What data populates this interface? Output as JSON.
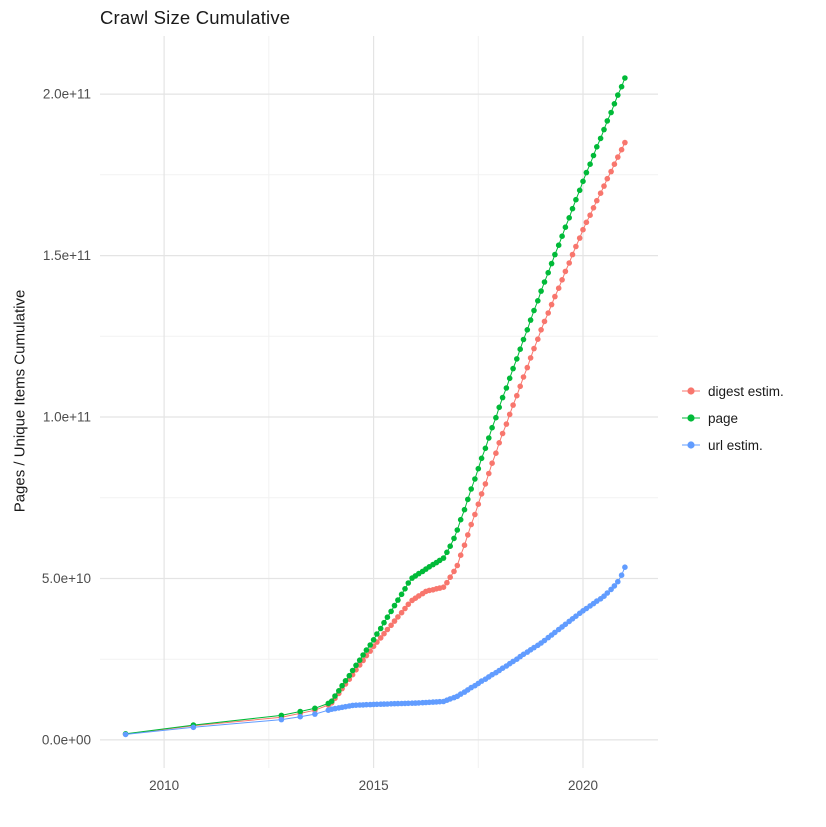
{
  "title": "Crawl Size Cumulative",
  "y_axis_label": "Pages / Unique Items Cumulative",
  "colors": {
    "digest_estim": "#F8766D",
    "page": "#00BA38",
    "url_estim": "#619CFF",
    "major_grid": "#e4e4e4",
    "minor_grid": "#f2f2f2",
    "tick_text": "#4d4d4d"
  },
  "chart_data": {
    "type": "scatter",
    "title": "Crawl Size Cumulative",
    "xlabel": "",
    "ylabel": "Pages / Unique Items Cumulative",
    "y_unit": "1e9",
    "legend_position": "right",
    "grid": "on",
    "x_domain": [
      2008.47,
      2021.79
    ],
    "y_domain": [
      -8.7,
      218
    ],
    "x_ticks": [
      {
        "value": 2010,
        "label": "2010"
      },
      {
        "value": 2015,
        "label": "2015"
      },
      {
        "value": 2020,
        "label": "2020"
      }
    ],
    "x_minor_ticks": [
      2012.5,
      2017.5
    ],
    "y_ticks": [
      {
        "value": 0,
        "label": "0.0e+00"
      },
      {
        "value": 50,
        "label": "5.0e+10"
      },
      {
        "value": 100,
        "label": "1.0e+11"
      },
      {
        "value": 150,
        "label": "1.5e+11"
      },
      {
        "value": 200,
        "label": "2.0e+11"
      }
    ],
    "y_minor_ticks": [
      25,
      75,
      125,
      175
    ],
    "series": [
      {
        "id": "digest-estim",
        "name": "digest estim.",
        "color": "#F8766D",
        "points": [
          [
            2009.08,
            1.8
          ],
          [
            2010.7,
            4.4
          ],
          [
            2012.8,
            7
          ],
          [
            2013.25,
            8.2
          ],
          [
            2013.6,
            9.2
          ],
          [
            2013.92,
            10.8
          ],
          [
            2014,
            11.5
          ],
          [
            2014.08,
            12.9
          ],
          [
            2014.17,
            14.4
          ],
          [
            2014.25,
            15.9
          ],
          [
            2014.33,
            17.3
          ],
          [
            2014.42,
            18.8
          ],
          [
            2014.5,
            20.2
          ],
          [
            2014.58,
            21.7
          ],
          [
            2014.67,
            23.2
          ],
          [
            2014.75,
            24.6
          ],
          [
            2014.83,
            26.1
          ],
          [
            2014.92,
            27.5
          ],
          [
            2015,
            29
          ],
          [
            2015.08,
            30.3
          ],
          [
            2015.17,
            31.6
          ],
          [
            2015.25,
            32.9
          ],
          [
            2015.33,
            34.2
          ],
          [
            2015.42,
            35.5
          ],
          [
            2015.5,
            36.8
          ],
          [
            2015.58,
            38.1
          ],
          [
            2015.67,
            39.4
          ],
          [
            2015.75,
            40.7
          ],
          [
            2015.83,
            42
          ],
          [
            2015.92,
            43.2
          ],
          [
            2016,
            43.9
          ],
          [
            2016.08,
            44.6
          ],
          [
            2016.17,
            45.3
          ],
          [
            2016.25,
            46
          ],
          [
            2016.33,
            46.3
          ],
          [
            2016.42,
            46.5
          ],
          [
            2016.5,
            46.8
          ],
          [
            2016.58,
            47
          ],
          [
            2016.67,
            47.3
          ],
          [
            2016.75,
            48.7
          ],
          [
            2016.83,
            50.4
          ],
          [
            2016.92,
            52.2
          ],
          [
            2017,
            54
          ],
          [
            2017.08,
            57.2
          ],
          [
            2017.17,
            60.3
          ],
          [
            2017.25,
            63.5
          ],
          [
            2017.33,
            66.7
          ],
          [
            2017.42,
            69.8
          ],
          [
            2017.5,
            73
          ],
          [
            2017.58,
            76.2
          ],
          [
            2017.67,
            79.3
          ],
          [
            2017.75,
            82.5
          ],
          [
            2017.83,
            85.7
          ],
          [
            2017.92,
            88.8
          ],
          [
            2018,
            92
          ],
          [
            2018.08,
            94.9
          ],
          [
            2018.17,
            97.8
          ],
          [
            2018.25,
            100.8
          ],
          [
            2018.33,
            103.7
          ],
          [
            2018.42,
            106.6
          ],
          [
            2018.5,
            109.5
          ],
          [
            2018.58,
            112.4
          ],
          [
            2018.67,
            115.3
          ],
          [
            2018.75,
            118.3
          ],
          [
            2018.83,
            121.2
          ],
          [
            2018.92,
            124.1
          ],
          [
            2019,
            127
          ],
          [
            2019.08,
            129.6
          ],
          [
            2019.17,
            132.2
          ],
          [
            2019.25,
            134.8
          ],
          [
            2019.33,
            137.3
          ],
          [
            2019.42,
            139.9
          ],
          [
            2019.5,
            142.5
          ],
          [
            2019.58,
            145.1
          ],
          [
            2019.67,
            147.7
          ],
          [
            2019.75,
            150.3
          ],
          [
            2019.83,
            152.8
          ],
          [
            2019.92,
            155.4
          ],
          [
            2020,
            158
          ],
          [
            2020.08,
            160.3
          ],
          [
            2020.17,
            162.5
          ],
          [
            2020.25,
            164.8
          ],
          [
            2020.33,
            167
          ],
          [
            2020.42,
            169.3
          ],
          [
            2020.5,
            171.5
          ],
          [
            2020.58,
            173.8
          ],
          [
            2020.67,
            176
          ],
          [
            2020.75,
            178.3
          ],
          [
            2020.83,
            180.5
          ],
          [
            2020.92,
            182.8
          ],
          [
            2021,
            185
          ]
        ]
      },
      {
        "id": "page",
        "name": "page",
        "color": "#00BA38",
        "points": [
          [
            2009.08,
            1.9
          ],
          [
            2010.7,
            4.6
          ],
          [
            2012.8,
            7.6
          ],
          [
            2013.25,
            8.8
          ],
          [
            2013.6,
            9.8
          ],
          [
            2013.92,
            11.3
          ],
          [
            2014,
            12
          ],
          [
            2014.08,
            13.6
          ],
          [
            2014.17,
            15.2
          ],
          [
            2014.25,
            16.8
          ],
          [
            2014.33,
            18.3
          ],
          [
            2014.42,
            19.9
          ],
          [
            2014.5,
            21.5
          ],
          [
            2014.58,
            23.1
          ],
          [
            2014.67,
            24.7
          ],
          [
            2014.75,
            26.3
          ],
          [
            2014.83,
            27.8
          ],
          [
            2014.92,
            29.4
          ],
          [
            2015,
            31
          ],
          [
            2015.08,
            32.8
          ],
          [
            2015.17,
            34.5
          ],
          [
            2015.25,
            36.3
          ],
          [
            2015.33,
            38
          ],
          [
            2015.42,
            39.8
          ],
          [
            2015.5,
            41.6
          ],
          [
            2015.58,
            43.3
          ],
          [
            2015.67,
            45.1
          ],
          [
            2015.75,
            46.8
          ],
          [
            2015.83,
            48.6
          ],
          [
            2015.92,
            50.1
          ],
          [
            2016,
            50.8
          ],
          [
            2016.08,
            51.5
          ],
          [
            2016.17,
            52.2
          ],
          [
            2016.25,
            52.9
          ],
          [
            2016.33,
            53.6
          ],
          [
            2016.42,
            54.3
          ],
          [
            2016.5,
            54.9
          ],
          [
            2016.58,
            55.6
          ],
          [
            2016.67,
            56.3
          ],
          [
            2016.75,
            58.1
          ],
          [
            2016.83,
            60
          ],
          [
            2016.92,
            62.4
          ],
          [
            2017,
            65
          ],
          [
            2017.08,
            68.2
          ],
          [
            2017.17,
            71.3
          ],
          [
            2017.25,
            74.5
          ],
          [
            2017.33,
            77.7
          ],
          [
            2017.42,
            80.8
          ],
          [
            2017.5,
            84
          ],
          [
            2017.58,
            87.2
          ],
          [
            2017.67,
            90.3
          ],
          [
            2017.75,
            93.5
          ],
          [
            2017.83,
            96.7
          ],
          [
            2017.92,
            99.8
          ],
          [
            2018,
            103
          ],
          [
            2018.08,
            106
          ],
          [
            2018.17,
            109
          ],
          [
            2018.25,
            112
          ],
          [
            2018.33,
            115
          ],
          [
            2018.42,
            118
          ],
          [
            2018.5,
            121
          ],
          [
            2018.58,
            124
          ],
          [
            2018.67,
            127
          ],
          [
            2018.75,
            130
          ],
          [
            2018.83,
            133
          ],
          [
            2018.92,
            136
          ],
          [
            2019,
            139
          ],
          [
            2019.08,
            141.8
          ],
          [
            2019.17,
            144.7
          ],
          [
            2019.25,
            147.5
          ],
          [
            2019.33,
            150.3
          ],
          [
            2019.42,
            153.2
          ],
          [
            2019.5,
            156
          ],
          [
            2019.58,
            158.8
          ],
          [
            2019.67,
            161.7
          ],
          [
            2019.75,
            164.5
          ],
          [
            2019.83,
            167.3
          ],
          [
            2019.92,
            170.2
          ],
          [
            2020,
            173
          ],
          [
            2020.08,
            175.7
          ],
          [
            2020.17,
            178.3
          ],
          [
            2020.25,
            181
          ],
          [
            2020.33,
            183.7
          ],
          [
            2020.42,
            186.3
          ],
          [
            2020.5,
            189
          ],
          [
            2020.58,
            191.7
          ],
          [
            2020.67,
            194.3
          ],
          [
            2020.75,
            197
          ],
          [
            2020.83,
            199.7
          ],
          [
            2020.92,
            202.3
          ],
          [
            2021,
            205
          ]
        ]
      },
      {
        "id": "url-estim",
        "name": "url estim.",
        "color": "#619CFF",
        "points": [
          [
            2009.08,
            1.7
          ],
          [
            2010.7,
            3.9
          ],
          [
            2012.8,
            6.3
          ],
          [
            2013.25,
            7.2
          ],
          [
            2013.6,
            8
          ],
          [
            2013.92,
            9.2
          ],
          [
            2014,
            9.5
          ],
          [
            2014.08,
            9.7
          ],
          [
            2014.17,
            9.9
          ],
          [
            2014.25,
            10.1
          ],
          [
            2014.33,
            10.3
          ],
          [
            2014.42,
            10.5
          ],
          [
            2014.5,
            10.7
          ],
          [
            2014.58,
            10.75
          ],
          [
            2014.67,
            10.8
          ],
          [
            2014.75,
            10.85
          ],
          [
            2014.83,
            10.9
          ],
          [
            2014.92,
            10.95
          ],
          [
            2015,
            11
          ],
          [
            2015.08,
            11.03
          ],
          [
            2015.17,
            11.07
          ],
          [
            2015.25,
            11.1
          ],
          [
            2015.33,
            11.13
          ],
          [
            2015.42,
            11.17
          ],
          [
            2015.5,
            11.2
          ],
          [
            2015.58,
            11.23
          ],
          [
            2015.67,
            11.27
          ],
          [
            2015.75,
            11.3
          ],
          [
            2015.83,
            11.33
          ],
          [
            2015.92,
            11.37
          ],
          [
            2016,
            11.4
          ],
          [
            2016.08,
            11.46
          ],
          [
            2016.17,
            11.52
          ],
          [
            2016.25,
            11.58
          ],
          [
            2016.33,
            11.64
          ],
          [
            2016.42,
            11.7
          ],
          [
            2016.5,
            11.76
          ],
          [
            2016.58,
            11.82
          ],
          [
            2016.67,
            11.88
          ],
          [
            2016.75,
            12.3
          ],
          [
            2016.83,
            12.7
          ],
          [
            2016.92,
            13.1
          ],
          [
            2017,
            13.5
          ],
          [
            2017.08,
            14.2
          ],
          [
            2017.17,
            14.8
          ],
          [
            2017.25,
            15.5
          ],
          [
            2017.33,
            16.2
          ],
          [
            2017.42,
            16.8
          ],
          [
            2017.5,
            17.5
          ],
          [
            2017.58,
            18.2
          ],
          [
            2017.67,
            18.8
          ],
          [
            2017.75,
            19.5
          ],
          [
            2017.83,
            20.2
          ],
          [
            2017.92,
            20.8
          ],
          [
            2018,
            21.5
          ],
          [
            2018.08,
            22.2
          ],
          [
            2018.17,
            22.9
          ],
          [
            2018.25,
            23.6
          ],
          [
            2018.33,
            24.3
          ],
          [
            2018.42,
            25
          ],
          [
            2018.5,
            25.8
          ],
          [
            2018.58,
            26.5
          ],
          [
            2018.67,
            27.2
          ],
          [
            2018.75,
            27.9
          ],
          [
            2018.83,
            28.6
          ],
          [
            2018.92,
            29.3
          ],
          [
            2019,
            30
          ],
          [
            2019.08,
            30.8
          ],
          [
            2019.17,
            31.7
          ],
          [
            2019.25,
            32.5
          ],
          [
            2019.33,
            33.3
          ],
          [
            2019.42,
            34.2
          ],
          [
            2019.5,
            35
          ],
          [
            2019.58,
            35.8
          ],
          [
            2019.67,
            36.7
          ],
          [
            2019.75,
            37.5
          ],
          [
            2019.83,
            38.3
          ],
          [
            2019.92,
            39.2
          ],
          [
            2020,
            40
          ],
          [
            2020.08,
            40.7
          ],
          [
            2020.17,
            41.5
          ],
          [
            2020.25,
            42.2
          ],
          [
            2020.33,
            43
          ],
          [
            2020.42,
            43.7
          ],
          [
            2020.5,
            44.5
          ],
          [
            2020.58,
            45.5
          ],
          [
            2020.67,
            46.6
          ],
          [
            2020.75,
            47.7
          ],
          [
            2020.83,
            49
          ],
          [
            2020.92,
            51
          ],
          [
            2021,
            53.5
          ]
        ]
      }
    ]
  }
}
